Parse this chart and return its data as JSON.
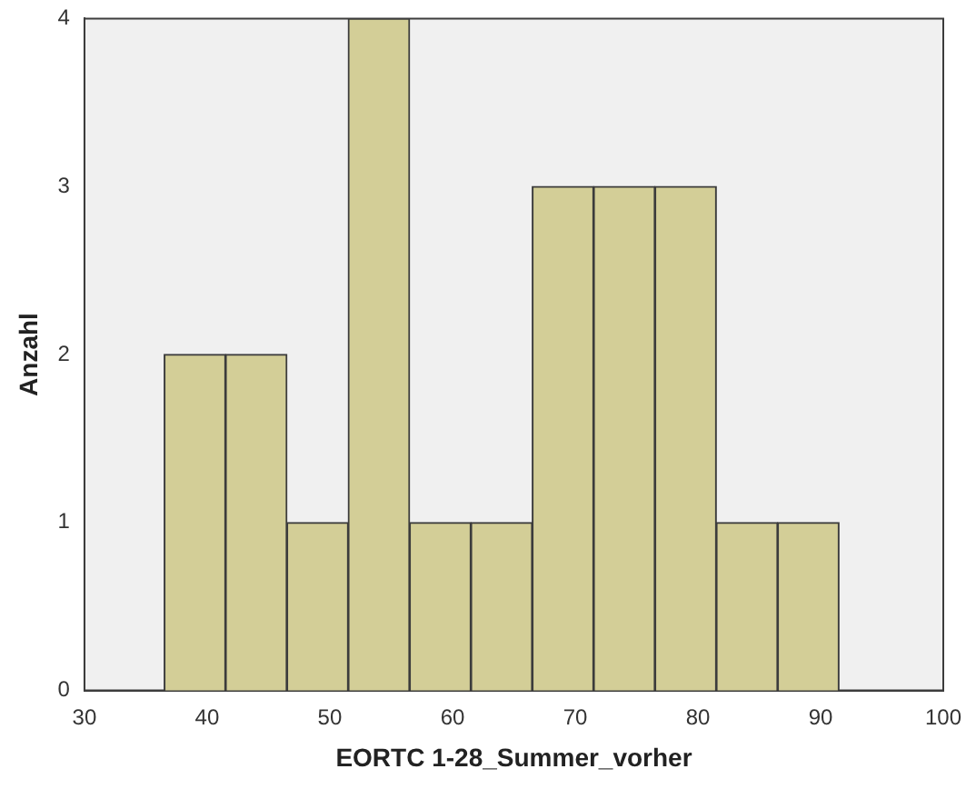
{
  "chart_data": {
    "type": "histogram",
    "xlabel": "EORTC 1-28_Summer_vorher",
    "ylabel": "Anzahl",
    "bins": [
      36.5,
      41.5,
      46.5,
      51.5,
      56.5,
      61.5,
      66.5,
      71.5,
      76.5,
      81.5,
      86.5,
      91.5
    ],
    "values": [
      2,
      2,
      1,
      4,
      1,
      1,
      3,
      3,
      3,
      1,
      1
    ],
    "color": "#d3ce97",
    "xlim": [
      30,
      100
    ],
    "xticks": [
      30,
      40,
      50,
      60,
      70,
      80,
      90,
      100
    ],
    "ylim": [
      0,
      4
    ],
    "yticks": [
      0,
      1,
      2,
      3,
      4
    ],
    "grid": false,
    "legend": false
  }
}
